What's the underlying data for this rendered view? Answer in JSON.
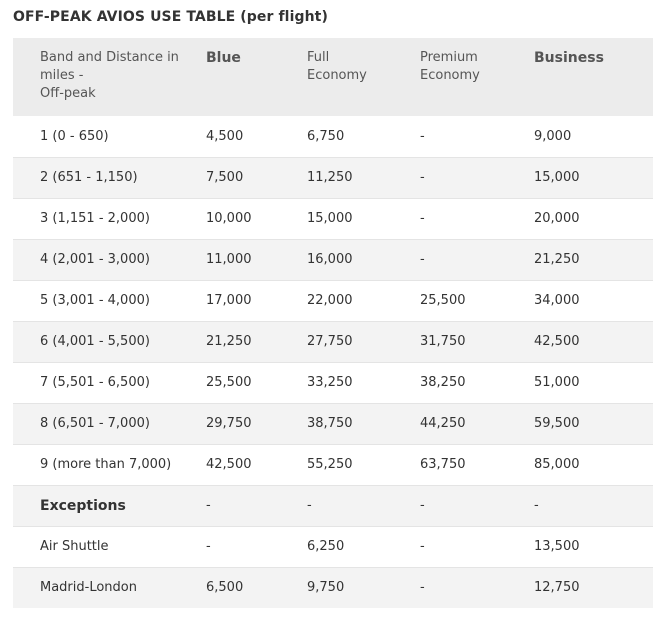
{
  "title": "OFF-PEAK AVIOS USE TABLE (per flight)",
  "headers": [
    {
      "text": "Band and Distance in miles -\nOff-peak",
      "bold": false
    },
    {
      "text": "Blue",
      "bold": true
    },
    {
      "text": "Full\nEconomy",
      "bold": false
    },
    {
      "text": "Premium\nEconomy",
      "bold": false
    },
    {
      "text": "Business",
      "bold": true
    }
  ],
  "rows": [
    {
      "band": "1 (0 - 650)",
      "blue": "4,500",
      "full_economy": "6,750",
      "premium_economy": "-",
      "business": "9,000"
    },
    {
      "band": "2 (651 - 1,150)",
      "blue": "7,500",
      "full_economy": "11,250",
      "premium_economy": "-",
      "business": "15,000"
    },
    {
      "band": "3 (1,151 - 2,000)",
      "blue": "10,000",
      "full_economy": "15,000",
      "premium_economy": "-",
      "business": "20,000"
    },
    {
      "band": "4 (2,001 - 3,000)",
      "blue": "11,000",
      "full_economy": "16,000",
      "premium_economy": "-",
      "business": "21,250"
    },
    {
      "band": "5 (3,001 - 4,000)",
      "blue": "17,000",
      "full_economy": "22,000",
      "premium_economy": "25,500",
      "business": "34,000"
    },
    {
      "band": "6 (4,001 - 5,500)",
      "blue": "21,250",
      "full_economy": "27,750",
      "premium_economy": "31,750",
      "business": "42,500"
    },
    {
      "band": "7 (5,501 - 6,500)",
      "blue": "25,500",
      "full_economy": "33,250",
      "premium_economy": "38,250",
      "business": "51,000"
    },
    {
      "band": "8 (6,501 - 7,000)",
      "blue": "29,750",
      "full_economy": "38,750",
      "premium_economy": "44,250",
      "business": "59,500"
    },
    {
      "band": "9 (more than 7,000)",
      "blue": "42,500",
      "full_economy": "55,250",
      "premium_economy": "63,750",
      "business": "85,000"
    },
    {
      "band": "Exceptions",
      "bold": true,
      "blue": "-",
      "full_economy": "-",
      "premium_economy": "-",
      "business": "-"
    },
    {
      "band": "Air Shuttle",
      "blue": "-",
      "full_economy": "6,250",
      "premium_economy": "-",
      "business": "13,500"
    },
    {
      "band": "Madrid-London",
      "blue": "6,500",
      "full_economy": "9,750",
      "premium_economy": "-",
      "business": "12,750"
    }
  ]
}
